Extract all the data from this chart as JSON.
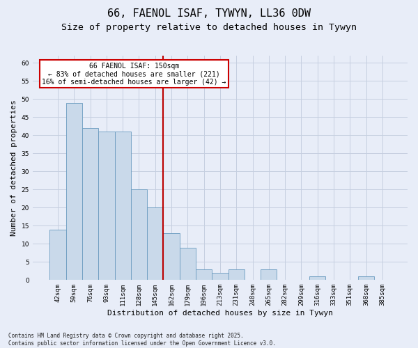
{
  "title1": "66, FAENOL ISAF, TYWYN, LL36 0DW",
  "title2": "Size of property relative to detached houses in Tywyn",
  "xlabel": "Distribution of detached houses by size in Tywyn",
  "ylabel": "Number of detached properties",
  "categories": [
    "42sqm",
    "59sqm",
    "76sqm",
    "93sqm",
    "111sqm",
    "128sqm",
    "145sqm",
    "162sqm",
    "179sqm",
    "196sqm",
    "213sqm",
    "231sqm",
    "248sqm",
    "265sqm",
    "282sqm",
    "299sqm",
    "316sqm",
    "333sqm",
    "351sqm",
    "368sqm",
    "385sqm"
  ],
  "values": [
    14,
    49,
    42,
    41,
    41,
    25,
    20,
    13,
    9,
    3,
    2,
    3,
    0,
    3,
    0,
    0,
    1,
    0,
    0,
    1,
    0
  ],
  "bar_color": "#c9d9ea",
  "bar_edge_color": "#6a9bbf",
  "vline_x_idx": 6.5,
  "vline_color": "#bb0000",
  "annotation_text": "66 FAENOL ISAF: 150sqm\n← 83% of detached houses are smaller (221)\n16% of semi-detached houses are larger (42) →",
  "annotation_box_color": "#ffffff",
  "annotation_box_edge": "#cc0000",
  "ylim": [
    0,
    62
  ],
  "yticks": [
    0,
    5,
    10,
    15,
    20,
    25,
    30,
    35,
    40,
    45,
    50,
    55,
    60
  ],
  "grid_color": "#c5cfe0",
  "bg_color": "#e8edf8",
  "footer_text": "Contains HM Land Registry data © Crown copyright and database right 2025.\nContains public sector information licensed under the Open Government Licence v3.0.",
  "title_fontsize": 11,
  "subtitle_fontsize": 9.5,
  "tick_fontsize": 6.5,
  "ylabel_fontsize": 8,
  "xlabel_fontsize": 8,
  "annotation_fontsize": 7,
  "footer_fontsize": 5.5
}
